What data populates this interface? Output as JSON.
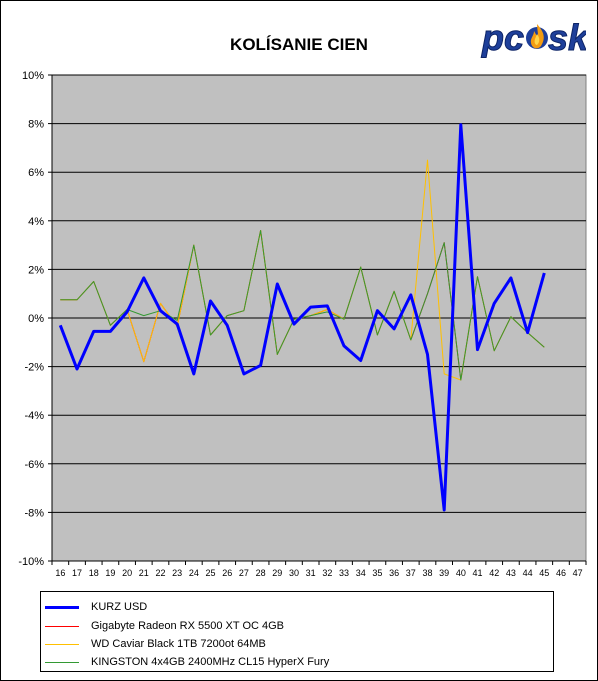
{
  "chart_data": {
    "type": "line",
    "title": "KOLÍSANIE CIEN",
    "xlabel": "",
    "ylabel": "",
    "categories": [
      "16",
      "17",
      "18",
      "19",
      "20",
      "21",
      "22",
      "23",
      "24",
      "25",
      "26",
      "27",
      "28",
      "29",
      "30",
      "31",
      "32",
      "33",
      "34",
      "35",
      "36",
      "37",
      "38",
      "39",
      "40",
      "41",
      "42",
      "43",
      "44",
      "45",
      "46",
      "47"
    ],
    "ylim": [
      -10,
      10
    ],
    "yticks": [
      -10,
      -8,
      -6,
      -4,
      -2,
      0,
      2,
      4,
      6,
      8,
      10
    ],
    "ytick_labels": [
      "-10%",
      "-8%",
      "-6%",
      "-4%",
      "-2%",
      "0%",
      "2%",
      "4%",
      "6%",
      "8%",
      "10%"
    ],
    "grid": "horizontal",
    "legend_position": "bottom",
    "series": [
      {
        "name": "KURZ USD",
        "color": "#0000ff",
        "width": 3,
        "values": [
          -0.3,
          -2.1,
          -0.55,
          -0.55,
          0.25,
          1.65,
          0.3,
          -0.25,
          -2.3,
          0.7,
          -0.3,
          -2.3,
          -1.95,
          1.4,
          -0.25,
          0.45,
          0.5,
          -1.15,
          -1.75,
          0.3,
          -0.45,
          0.95,
          -1.5,
          -7.9,
          7.95,
          -1.3,
          0.6,
          1.65,
          -0.6,
          1.85,
          null,
          null
        ]
      },
      {
        "name": "Gigabyte Radeon RX 5500 XT OC 4GB",
        "color": "#ff0000",
        "width": 1,
        "values": [
          0.75,
          0.75,
          1.5,
          -0.3,
          0.35,
          -1.8,
          0.6,
          -0.35,
          3.0,
          -0.7,
          0.1,
          0.3,
          3.6,
          -1.5,
          -0.05,
          0.1,
          0.35,
          -0.05,
          2.1,
          -0.7,
          1.1,
          -0.9,
          1.0,
          3.1,
          -2.55,
          1.7,
          -1.35,
          0.05,
          -0.6,
          -1.2,
          null,
          null
        ]
      },
      {
        "name": "WD Caviar Black 1TB 7200ot 64MB",
        "color": "#ffc000",
        "width": 1,
        "values": [
          0.75,
          0.75,
          1.5,
          -0.3,
          0.35,
          -1.8,
          0.6,
          -0.35,
          3.0,
          -0.7,
          0.1,
          0.3,
          3.6,
          -1.5,
          -0.05,
          0.1,
          0.35,
          -0.05,
          2.1,
          -0.7,
          1.1,
          -0.9,
          6.5,
          -2.3,
          -2.55,
          1.7,
          -1.35,
          0.05,
          -0.6,
          -1.2,
          null,
          null
        ]
      },
      {
        "name": "KINGSTON 4x4GB 2400MHz CL15 HyperX Fury",
        "color": "#339933",
        "width": 1,
        "values": [
          0.75,
          0.75,
          1.5,
          -0.3,
          0.35,
          0.1,
          0.3,
          -0.1,
          3.0,
          -0.7,
          0.1,
          0.3,
          3.6,
          -1.5,
          -0.05,
          0.1,
          0.25,
          -0.05,
          2.1,
          -0.7,
          1.1,
          -0.9,
          1.0,
          3.1,
          -2.55,
          1.7,
          -1.35,
          0.05,
          -0.6,
          -1.2,
          null,
          null
        ]
      }
    ]
  },
  "logo": {
    "text": "pcosk",
    "color": "#1e3f9a",
    "flame_color": "#f39c12"
  },
  "colors": {
    "plot_background": "#c0c0c0",
    "gridline": "#000000"
  }
}
